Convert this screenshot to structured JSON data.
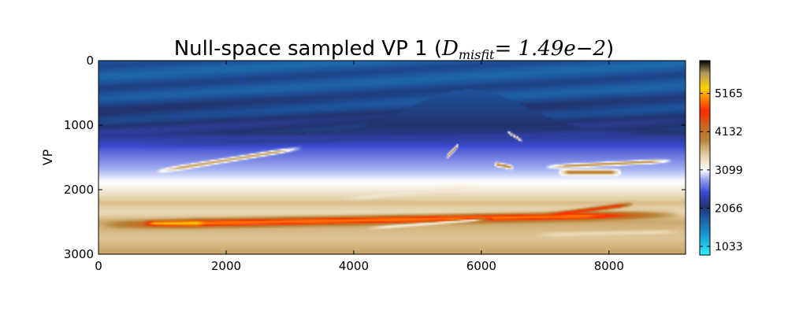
{
  "chart_data": {
    "type": "heatmap",
    "title": {
      "prefix": "Null-space sampled VP 1 (",
      "math_symbol": "D",
      "math_subscript": "misfit",
      "math_rest": "= 1.49e−2",
      "suffix": ")"
    },
    "xlabel": "",
    "ylabel": "VP",
    "xlim": [
      0,
      9200
    ],
    "ylim": [
      3000,
      0
    ],
    "x_ticks": [
      0,
      2000,
      4000,
      6000,
      8000
    ],
    "y_ticks": [
      0,
      1000,
      2000,
      3000
    ],
    "y_inverted": true,
    "colorbar": {
      "ticks": [
        1033,
        2066,
        3099,
        4132,
        5165
      ],
      "range": [
        800,
        6050
      ],
      "colormap": [
        {
          "value": 800,
          "color": "#2ff0ff"
        },
        {
          "value": 1300,
          "color": "#1a9ed4"
        },
        {
          "value": 1900,
          "color": "#1e4e96"
        },
        {
          "value": 2100,
          "color": "#22336e"
        },
        {
          "value": 2500,
          "color": "#3b4bd0"
        },
        {
          "value": 2850,
          "color": "#9aa6ee"
        },
        {
          "value": 3099,
          "color": "#ffffff"
        },
        {
          "value": 3500,
          "color": "#e4cfa6"
        },
        {
          "value": 3900,
          "color": "#b8863a"
        },
        {
          "value": 4250,
          "color": "#c86a22"
        },
        {
          "value": 4700,
          "color": "#ff2a00"
        },
        {
          "value": 5300,
          "color": "#ffd200"
        },
        {
          "value": 5700,
          "color": "#b49c60"
        },
        {
          "value": 6050,
          "color": "#000000"
        }
      ]
    },
    "field_model": {
      "background": [
        {
          "depth": 0,
          "value": 1800
        },
        {
          "depth": 500,
          "value": 1880
        },
        {
          "depth": 1100,
          "value": 2150
        },
        {
          "depth": 1400,
          "value": 2600
        },
        {
          "depth": 1750,
          "value": 2950
        },
        {
          "depth": 2000,
          "value": 3250
        },
        {
          "depth": 2200,
          "value": 3600
        },
        {
          "depth": 2350,
          "value": 3400
        },
        {
          "depth": 2500,
          "value": 3700
        },
        {
          "depth": 2750,
          "value": 3550
        },
        {
          "depth": 3000,
          "value": 3750
        }
      ],
      "bands": [
        {
          "x": [
            0,
            9200
          ],
          "depth": [
            2550,
            2380
          ],
          "width": 55,
          "value": 5000
        },
        {
          "x": [
            700,
            1700
          ],
          "depth": [
            2520,
            2520
          ],
          "width": 30,
          "value": 5300
        },
        {
          "x": [
            900,
            3200
          ],
          "depth": [
            1720,
            1350
          ],
          "width": 28,
          "value": 3800
        },
        {
          "x": [
            7000,
            8400
          ],
          "depth": [
            2400,
            2220
          ],
          "width": 28,
          "value": 4700
        },
        {
          "x": [
            7000,
            9000
          ],
          "depth": [
            1650,
            1550
          ],
          "width": 25,
          "value": 3900
        },
        {
          "x": [
            7200,
            8200
          ],
          "depth": [
            1730,
            1730
          ],
          "width": 35,
          "value": 4050
        },
        {
          "x": [
            3800,
            6000
          ],
          "depth": [
            2150,
            1950
          ],
          "width": 30,
          "value": 3300
        },
        {
          "x": [
            600,
            9200
          ],
          "depth": [
            1300,
            1100
          ],
          "width": 40,
          "value": 2300
        },
        {
          "x": [
            5450,
            5650
          ],
          "depth": [
            1500,
            1300
          ],
          "width": 25,
          "value": 3950
        },
        {
          "x": [
            6200,
            6500
          ],
          "depth": [
            1600,
            1660
          ],
          "width": 25,
          "value": 4050
        },
        {
          "x": [
            6400,
            6650
          ],
          "depth": [
            1100,
            1250
          ],
          "width": 20,
          "value": 3800
        },
        {
          "x": [
            4200,
            6200
          ],
          "depth": [
            2600,
            2450
          ],
          "width": 22,
          "value": 3200
        },
        {
          "x": [
            6800,
            9200
          ],
          "depth": [
            2700,
            2650
          ],
          "width": 30,
          "value": 3400
        }
      ]
    }
  }
}
